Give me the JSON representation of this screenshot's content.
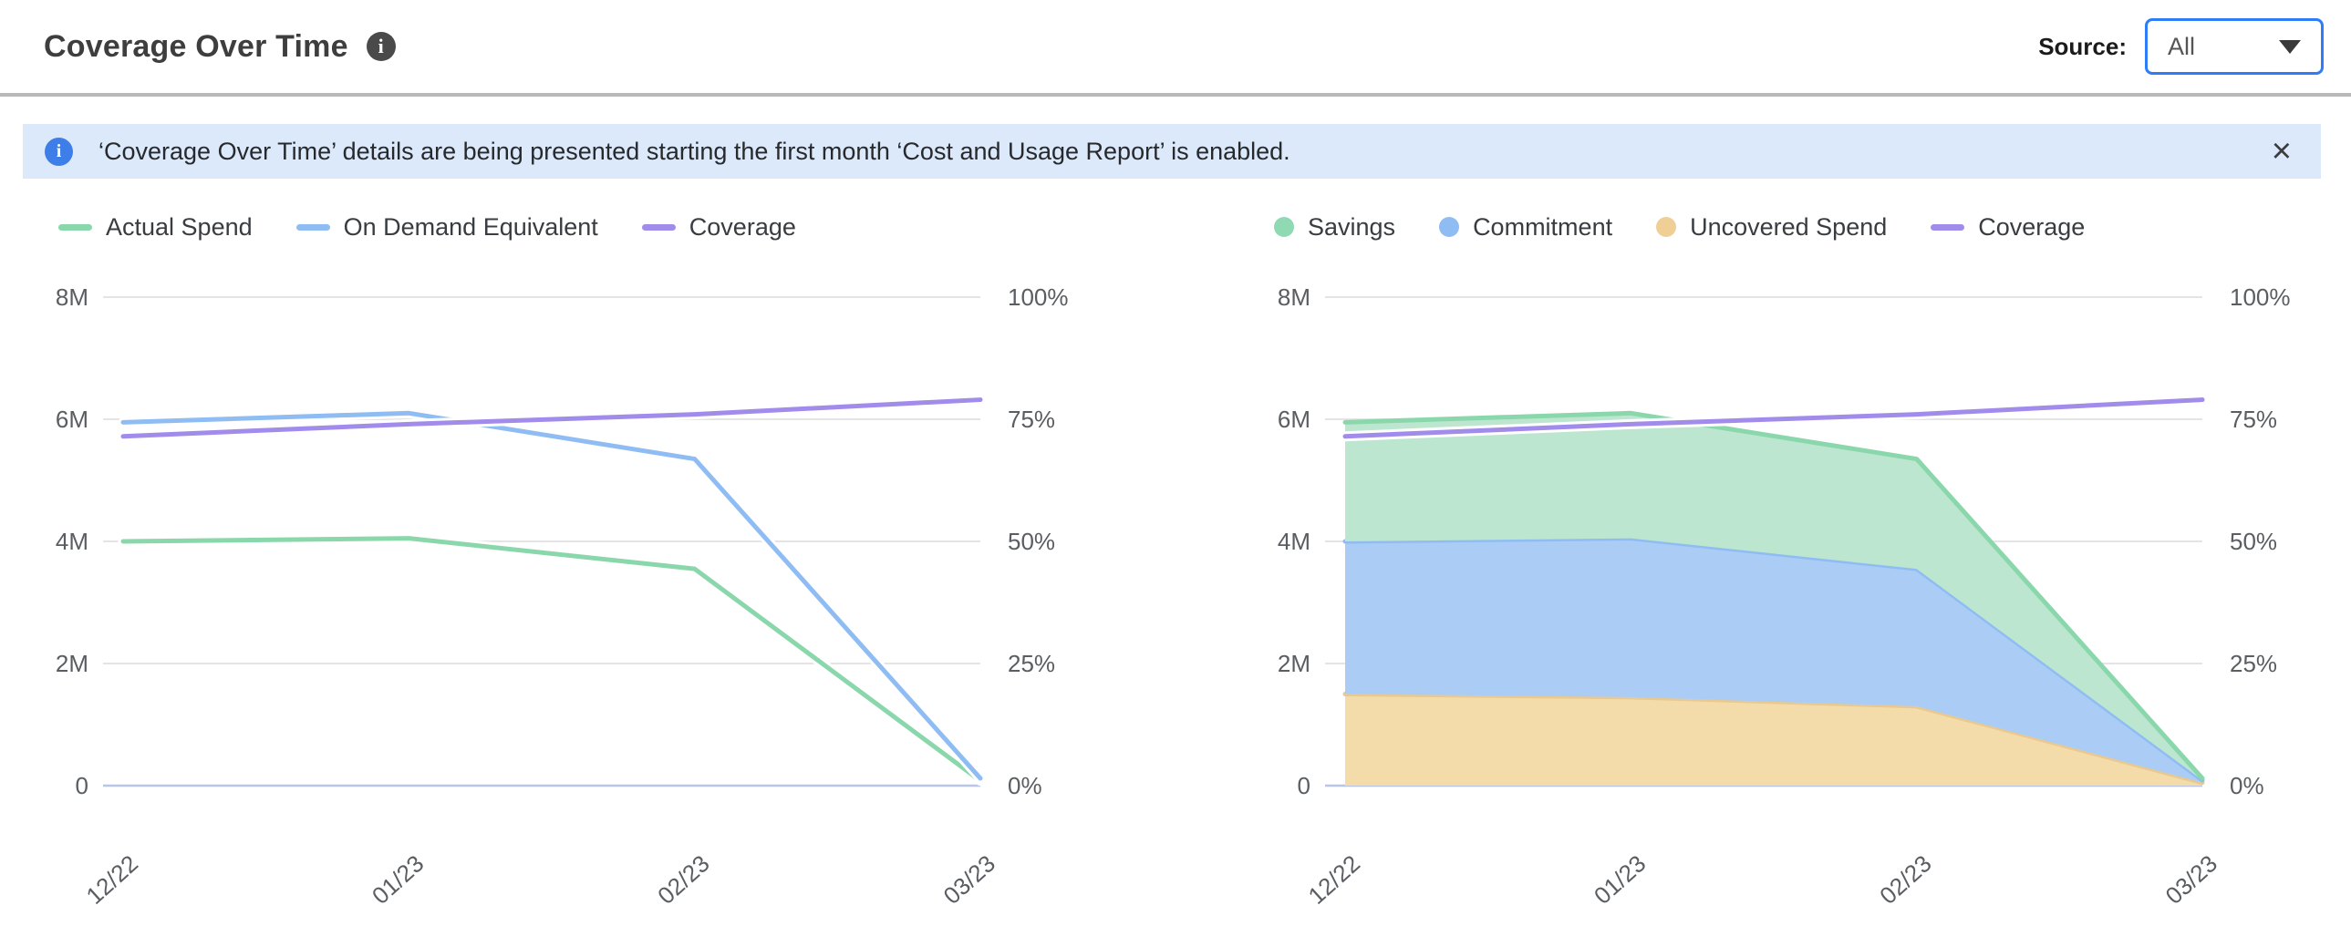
{
  "colors": {
    "accent_blue": "#2e7cf6",
    "banner_bg": "#dbe9fb",
    "banner_icon_bg": "#3d7ee8",
    "title_info_bg": "#4a4a4a"
  },
  "header": {
    "title": "Coverage Over Time",
    "info_icon": "i",
    "source_label": "Source:",
    "source_value": "All"
  },
  "banner": {
    "info_icon": "i",
    "text": "‘Coverage Over Time’ details are being presented starting the first month ‘Cost and Usage Report’ is enabled.",
    "close_icon": "×"
  },
  "chart_data": [
    {
      "id": "spend-lines",
      "type": "line",
      "x": [
        "12/22",
        "01/23",
        "02/23",
        "03/23"
      ],
      "left_axis": {
        "max": 8000000,
        "ticks": [
          "8M",
          "6M",
          "4M",
          "2M",
          "0"
        ]
      },
      "right_axis": {
        "max": 100,
        "ticks": [
          "100%",
          "75%",
          "50%",
          "25%",
          "0%"
        ]
      },
      "margin_left": 95,
      "legend": [
        {
          "label": "Actual Spend",
          "color": "#8bd7ac",
          "shape": "line"
        },
        {
          "label": "On Demand Equivalent",
          "color": "#8fbdf3",
          "shape": "line"
        },
        {
          "label": "Coverage",
          "color": "#a18ceb",
          "shape": "line"
        }
      ],
      "series": [
        {
          "name": "Actual Spend",
          "render": "line",
          "axis": "left",
          "color": "#8bd7ac",
          "values": [
            4000000,
            4050000,
            3550000,
            80000
          ]
        },
        {
          "name": "On Demand Equivalent",
          "render": "line",
          "axis": "left",
          "color": "#8fbdf3",
          "values": [
            5950000,
            6100000,
            5350000,
            120000
          ]
        },
        {
          "name": "Coverage",
          "render": "line",
          "axis": "right",
          "color": "#a18ceb",
          "values": [
            71.5,
            74,
            76,
            79
          ],
          "unit": "%"
        }
      ]
    },
    {
      "id": "coverage-areas",
      "type": "area",
      "x": [
        "12/22",
        "01/23",
        "02/23",
        "03/23"
      ],
      "left_axis": {
        "max": 8000000,
        "ticks": [
          "8M",
          "6M",
          "4M",
          "2M",
          "0"
        ]
      },
      "right_axis": {
        "max": 100,
        "ticks": [
          "100%",
          "75%",
          "50%",
          "25%",
          "0%"
        ]
      },
      "margin_left": 180,
      "legend": [
        {
          "label": "Savings",
          "color": "#8fdab3",
          "shape": "dot"
        },
        {
          "label": "Commitment",
          "color": "#8fbdf3",
          "shape": "dot"
        },
        {
          "label": "Uncovered Spend",
          "color": "#f0cf97",
          "shape": "dot"
        },
        {
          "label": "Coverage",
          "color": "#a18ceb",
          "shape": "line"
        }
      ],
      "series": [
        {
          "name": "Uncovered Spend",
          "render": "area",
          "axis": "left",
          "color": "#e9c98f",
          "fill": "#f4dcaa",
          "values": [
            1500000,
            1450000,
            1300000,
            50000
          ]
        },
        {
          "name": "Commitment",
          "render": "area",
          "axis": "left",
          "color": "#8fbdf3",
          "fill": "#abcdf5",
          "values": [
            2500000,
            2600000,
            2250000,
            40000
          ]
        },
        {
          "name": "Savings",
          "render": "area",
          "axis": "left",
          "color": "#8bd7ac",
          "fill": "#bde6d0",
          "values": [
            1950000,
            2050000,
            1800000,
            30000
          ]
        },
        {
          "name": "Coverage",
          "render": "line",
          "axis": "right",
          "color": "#a18ceb",
          "values": [
            71.5,
            74,
            76,
            79
          ],
          "unit": "%"
        }
      ]
    }
  ]
}
